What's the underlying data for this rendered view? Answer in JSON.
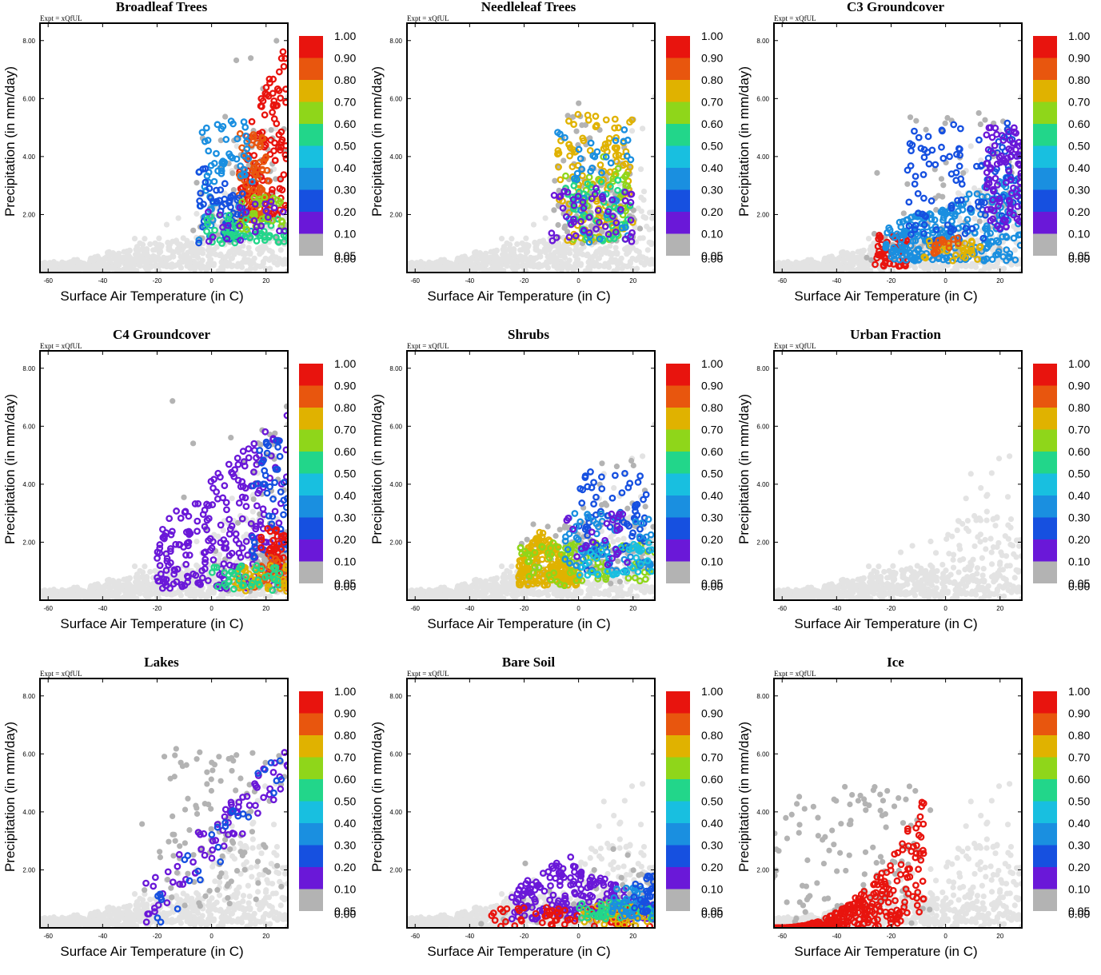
{
  "figure": {
    "expt_label": "Expt = xQfUL",
    "xlabel": "Surface Air Temperature (in C)",
    "ylabel": "Precipitation (in mm/day)"
  },
  "axes": {
    "xlim": [
      -63,
      28
    ],
    "ylim": [
      0,
      8.6
    ],
    "xticks": [
      -60,
      -40,
      -20,
      0,
      20
    ],
    "xtick_labels": [
      "-60",
      "-40",
      "-20",
      "0",
      "20"
    ],
    "yticks": [
      2,
      4,
      6,
      8
    ],
    "ytick_labels": [
      "2.00",
      "4.00",
      "6.00",
      "8.00"
    ]
  },
  "colorbar": {
    "labels": [
      "1.00",
      "0.90",
      "0.80",
      "0.70",
      "0.60",
      "0.50",
      "0.40",
      "0.30",
      "0.20",
      "0.10",
      "0.05",
      "0.00"
    ],
    "colors": [
      "#e8140e",
      "#e8560e",
      "#e0b200",
      "#8fd61a",
      "#22d68a",
      "#18bfe0",
      "#1a8fe0",
      "#1650e0",
      "#6a18d8",
      "#b3b3b3"
    ],
    "zero_color": "#b3b3b3",
    "background_color": "#e3e3e3"
  },
  "chart_data": [
    {
      "type": "scatter",
      "title": "Broadleaf Trees",
      "xlabel": "Surface Air Temperature (in C)",
      "ylabel": "Precipitation (in mm/day)",
      "xlim": [
        -63,
        28
      ],
      "ylim": [
        0,
        8.6
      ],
      "clusters": [
        {
          "color_index": 0,
          "x": [
            10,
            28
          ],
          "y": [
            1.8,
            8.4
          ],
          "n": 140,
          "shape": "upper"
        },
        {
          "color_index": 1,
          "x": [
            10,
            22
          ],
          "y": [
            1.8,
            4.8
          ],
          "n": 60
        },
        {
          "color_index": 6,
          "x": [
            -5,
            15
          ],
          "y": [
            1.0,
            5.3
          ],
          "n": 70
        },
        {
          "color_index": 7,
          "x": [
            -5,
            12
          ],
          "y": [
            1.0,
            3.6
          ],
          "n": 50
        },
        {
          "color_index": 4,
          "x": [
            -2,
            28
          ],
          "y": [
            1.0,
            2.0
          ],
          "n": 60
        },
        {
          "color_index": 3,
          "x": [
            10,
            26
          ],
          "y": [
            1.4,
            2.6
          ],
          "n": 30
        },
        {
          "color_index": 8,
          "x": [
            -5,
            28
          ],
          "y": [
            1.0,
            2.5
          ],
          "n": 25
        }
      ]
    },
    {
      "type": "scatter",
      "title": "Needleleaf Trees",
      "xlabel": "Surface Air Temperature (in C)",
      "ylabel": "Precipitation (in mm/day)",
      "xlim": [
        -63,
        28
      ],
      "ylim": [
        0,
        8.6
      ],
      "clusters": [
        {
          "color_index": 2,
          "x": [
            -8,
            20
          ],
          "y": [
            1.0,
            5.5
          ],
          "n": 110
        },
        {
          "color_index": 3,
          "x": [
            -5,
            18
          ],
          "y": [
            1.0,
            4.0
          ],
          "n": 40
        },
        {
          "color_index": 4,
          "x": [
            -5,
            20
          ],
          "y": [
            1.0,
            3.2
          ],
          "n": 50
        },
        {
          "color_index": 6,
          "x": [
            -8,
            20
          ],
          "y": [
            1.0,
            5.0
          ],
          "n": 40
        },
        {
          "color_index": 8,
          "x": [
            -10,
            20
          ],
          "y": [
            1.0,
            3.0
          ],
          "n": 50
        }
      ]
    },
    {
      "type": "scatter",
      "title": "C3 Groundcover",
      "xlabel": "Surface Air Temperature (in C)",
      "ylabel": "Precipitation (in mm/day)",
      "xlim": [
        -63,
        28
      ],
      "ylim": [
        0,
        8.6
      ],
      "clusters": [
        {
          "color_index": 0,
          "x": [
            -26,
            -14
          ],
          "y": [
            0.2,
            1.3
          ],
          "n": 50
        },
        {
          "color_index": 6,
          "x": [
            -22,
            28
          ],
          "y": [
            0.4,
            3.6
          ],
          "n": 260,
          "shape": "upper"
        },
        {
          "color_index": 7,
          "x": [
            -15,
            28
          ],
          "y": [
            1.0,
            5.2
          ],
          "n": 110
        },
        {
          "color_index": 8,
          "x": [
            15,
            28
          ],
          "y": [
            1.5,
            5.0
          ],
          "n": 90
        },
        {
          "color_index": 2,
          "x": [
            -10,
            15
          ],
          "y": [
            0.4,
            1.1
          ],
          "n": 30
        },
        {
          "color_index": 1,
          "x": [
            -5,
            5
          ],
          "y": [
            0.6,
            1.2
          ],
          "n": 18
        }
      ]
    },
    {
      "type": "scatter",
      "title": "C4 Groundcover",
      "xlabel": "Surface Air Temperature (in C)",
      "ylabel": "Precipitation (in mm/day)",
      "xlim": [
        -63,
        28
      ],
      "ylim": [
        0,
        8.6
      ],
      "clusters": [
        {
          "color_index": 8,
          "x": [
            -20,
            28
          ],
          "y": [
            0.4,
            6.5
          ],
          "n": 240,
          "shape": "upper"
        },
        {
          "color_index": 7,
          "x": [
            15,
            28
          ],
          "y": [
            1.0,
            5.5
          ],
          "n": 50
        },
        {
          "color_index": 0,
          "x": [
            18,
            28
          ],
          "y": [
            0.8,
            2.5
          ],
          "n": 40
        },
        {
          "color_index": 1,
          "x": [
            15,
            28
          ],
          "y": [
            0.4,
            1.5
          ],
          "n": 30
        },
        {
          "color_index": 2,
          "x": [
            8,
            28
          ],
          "y": [
            0.3,
            1.2
          ],
          "n": 40
        },
        {
          "color_index": 4,
          "x": [
            0,
            25
          ],
          "y": [
            0.3,
            1.2
          ],
          "n": 40
        }
      ]
    },
    {
      "type": "scatter",
      "title": "Shrubs",
      "xlabel": "Surface Air Temperature (in C)",
      "ylabel": "Precipitation (in mm/day)",
      "xlim": [
        -63,
        28
      ],
      "ylim": [
        0,
        8.6
      ],
      "clusters": [
        {
          "color_index": 2,
          "x": [
            -22,
            0
          ],
          "y": [
            0.5,
            2.5
          ],
          "n": 220,
          "shape": "mound"
        },
        {
          "color_index": 3,
          "x": [
            -22,
            28
          ],
          "y": [
            0.5,
            2.0
          ],
          "n": 90
        },
        {
          "color_index": 7,
          "x": [
            0,
            25
          ],
          "y": [
            1.0,
            4.5
          ],
          "n": 80
        },
        {
          "color_index": 6,
          "x": [
            -5,
            28
          ],
          "y": [
            1.0,
            3.0
          ],
          "n": 60
        },
        {
          "color_index": 5,
          "x": [
            0,
            28
          ],
          "y": [
            0.8,
            2.0
          ],
          "n": 40
        },
        {
          "color_index": 8,
          "x": [
            -5,
            20
          ],
          "y": [
            1.0,
            3.0
          ],
          "n": 25
        }
      ]
    },
    {
      "type": "scatter",
      "title": "Urban Fraction",
      "xlabel": "Surface Air Temperature (in C)",
      "ylabel": "Precipitation (in mm/day)",
      "xlim": [
        -63,
        28
      ],
      "ylim": [
        0,
        8.6
      ],
      "clusters": []
    },
    {
      "type": "scatter",
      "title": "Lakes",
      "xlabel": "Surface Air Temperature (in C)",
      "ylabel": "Precipitation (in mm/day)",
      "xlim": [
        -63,
        28
      ],
      "ylim": [
        0,
        8.6
      ],
      "clusters": [
        {
          "color_index": 8,
          "x": [
            -25,
            28
          ],
          "y": [
            0.8,
            5.5
          ],
          "n": 70,
          "shape": "diag"
        },
        {
          "color_index": 7,
          "x": [
            -20,
            28
          ],
          "y": [
            0.6,
            5.7
          ],
          "n": 30,
          "shape": "diag"
        }
      ]
    },
    {
      "type": "scatter",
      "title": "Bare Soil",
      "xlabel": "Surface Air Temperature (in C)",
      "ylabel": "Precipitation (in mm/day)",
      "xlim": [
        -63,
        28
      ],
      "ylim": [
        0,
        8.6
      ],
      "clusters": [
        {
          "color_index": 8,
          "x": [
            -25,
            28
          ],
          "y": [
            0.3,
            2.5
          ],
          "n": 230,
          "shape": "mound"
        },
        {
          "color_index": 0,
          "x": [
            -32,
            28
          ],
          "y": [
            0.05,
            0.7
          ],
          "n": 60
        },
        {
          "color_index": 2,
          "x": [
            0,
            28
          ],
          "y": [
            0.05,
            0.8
          ],
          "n": 45
        },
        {
          "color_index": 4,
          "x": [
            0,
            28
          ],
          "y": [
            0.3,
            0.9
          ],
          "n": 40
        },
        {
          "color_index": 6,
          "x": [
            10,
            28
          ],
          "y": [
            0.3,
            1.4
          ],
          "n": 40
        },
        {
          "color_index": 7,
          "x": [
            20,
            28
          ],
          "y": [
            0.5,
            1.8
          ],
          "n": 30
        }
      ]
    },
    {
      "type": "scatter",
      "title": "Ice",
      "xlabel": "Surface Air Temperature (in C)",
      "ylabel": "Precipitation (in mm/day)",
      "xlim": [
        -63,
        28
      ],
      "ylim": [
        0,
        8.6
      ],
      "clusters": [
        {
          "color_index": 0,
          "x": [
            -63,
            -8
          ],
          "y": [
            0.0,
            4.5
          ],
          "n": 320,
          "shape": "ice"
        }
      ]
    }
  ]
}
